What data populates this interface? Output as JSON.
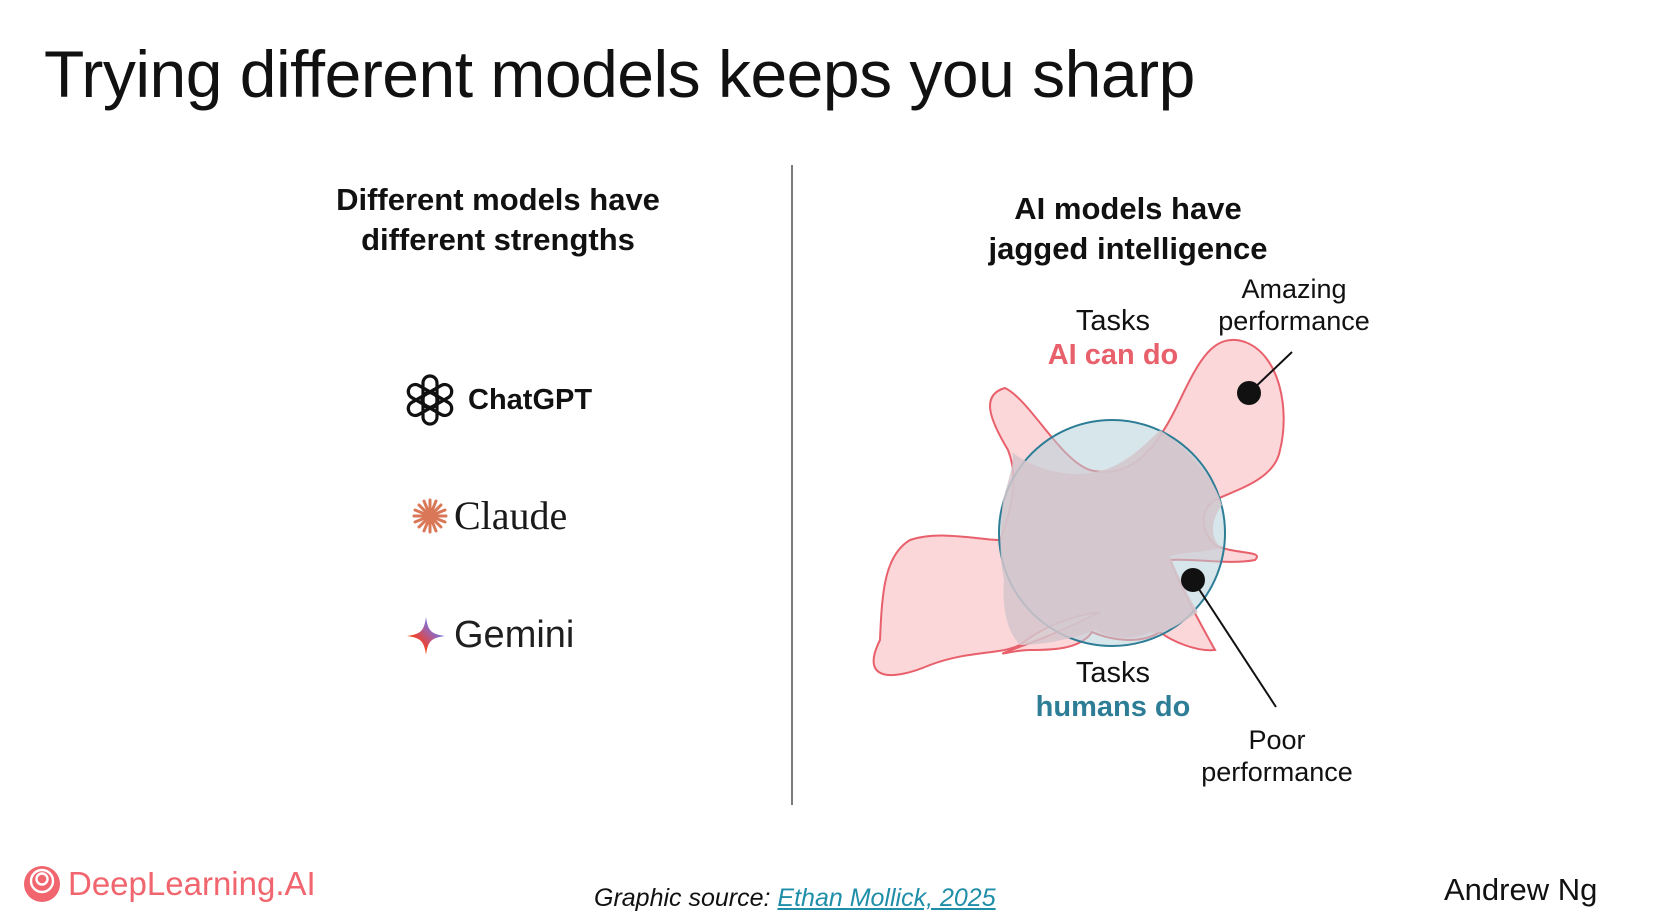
{
  "slide": {
    "title": "Trying different models keeps you sharp"
  },
  "left_panel": {
    "heading_line1": "Different models have",
    "heading_line2": "different strengths",
    "models": [
      {
        "name": "ChatGPT",
        "icon": "openai-knot-icon"
      },
      {
        "name": "Claude",
        "icon": "claude-starburst-icon"
      },
      {
        "name": "Gemini",
        "icon": "gemini-sparkle-icon"
      }
    ]
  },
  "right_panel": {
    "heading_line1": "AI models have",
    "heading_line2": "jagged intelligence",
    "ai_tasks_line1": "Tasks",
    "ai_tasks_line2": "AI can do",
    "human_tasks_line1": "Tasks",
    "human_tasks_line2": "humans do",
    "amazing_line1": "Amazing",
    "amazing_line2": "performance",
    "poor_line1": "Poor",
    "poor_line2": "performance"
  },
  "footer": {
    "brand": "DeepLearning.AI",
    "source_prefix": "Graphic source: ",
    "source_link": "Ethan Mollick, 2025",
    "author": "Andrew Ng"
  },
  "colors": {
    "ai_red": "#e8606b",
    "ai_fill": "#fbd7d9",
    "human_teal": "#2e7d96",
    "human_fill": "#b7d2da",
    "overlap_fill": "#d3c5cb",
    "brand_red": "#f0656e",
    "link_teal": "#1f8ea8"
  }
}
